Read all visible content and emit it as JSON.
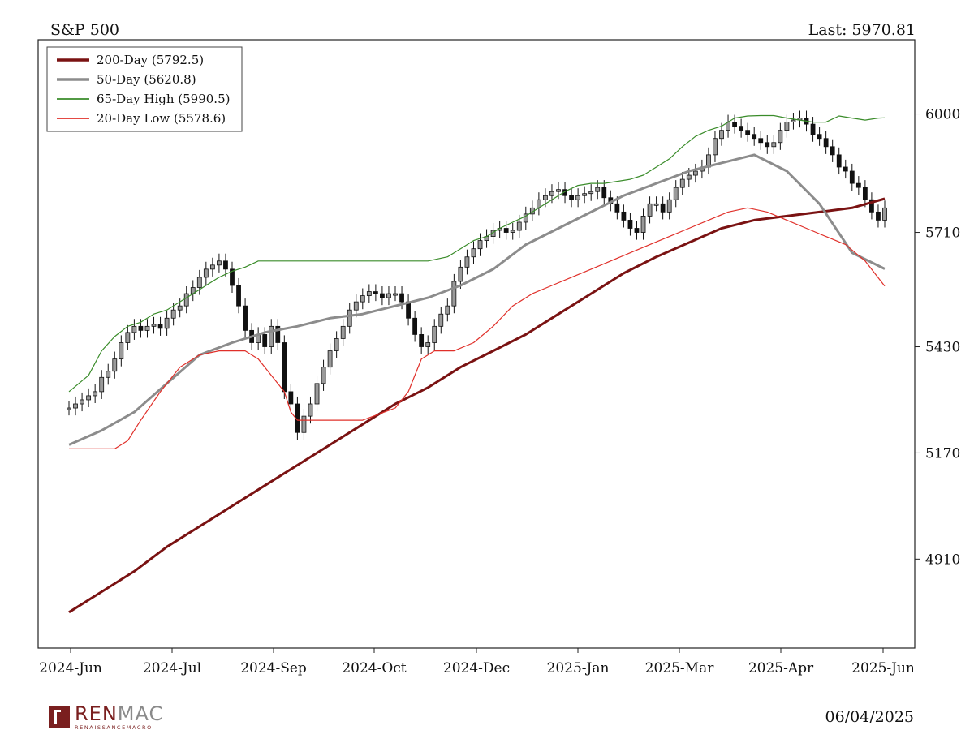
{
  "header": {
    "title": "S&P 500",
    "last": "Last: 5970.81"
  },
  "footer": {
    "date": "06/04/2025",
    "logo_name": "RENMAC",
    "logo_sub": "RENAISSANCEMACRO"
  },
  "chart_data": {
    "type": "line",
    "title": "S&P 500",
    "x_labels": [
      "2024-Jun",
      "2024-Jul",
      "2024-Sep",
      "2024-Oct",
      "2024-Dec",
      "2025-Jan",
      "2025-Mar",
      "2025-Apr",
      "2025-Jun"
    ],
    "y_ticks": [
      4910,
      5170,
      5430,
      5710,
      6000
    ],
    "ylim": [
      4720,
      6150
    ],
    "xlim": [
      0,
      250
    ],
    "legend_position": "top-left",
    "grid": false,
    "candles": {
      "name": "S&P 500 daily",
      "up_color": "#9a9a9a",
      "down_color": "#111111",
      "points": [
        [
          0,
          5280
        ],
        [
          2,
          5290
        ],
        [
          4,
          5300
        ],
        [
          6,
          5310
        ],
        [
          8,
          5320
        ],
        [
          10,
          5355
        ],
        [
          12,
          5370
        ],
        [
          14,
          5400
        ],
        [
          16,
          5440
        ],
        [
          18,
          5465
        ],
        [
          20,
          5480
        ],
        [
          22,
          5470
        ],
        [
          24,
          5480
        ],
        [
          26,
          5485
        ],
        [
          28,
          5475
        ],
        [
          30,
          5500
        ],
        [
          32,
          5520
        ],
        [
          34,
          5530
        ],
        [
          36,
          5560
        ],
        [
          38,
          5575
        ],
        [
          40,
          5600
        ],
        [
          42,
          5620
        ],
        [
          44,
          5630
        ],
        [
          46,
          5640
        ],
        [
          48,
          5620
        ],
        [
          50,
          5580
        ],
        [
          52,
          5530
        ],
        [
          54,
          5470
        ],
        [
          56,
          5440
        ],
        [
          58,
          5460
        ],
        [
          60,
          5430
        ],
        [
          62,
          5480
        ],
        [
          64,
          5440
        ],
        [
          66,
          5320
        ],
        [
          68,
          5290
        ],
        [
          70,
          5220
        ],
        [
          72,
          5260
        ],
        [
          74,
          5290
        ],
        [
          76,
          5340
        ],
        [
          78,
          5380
        ],
        [
          80,
          5420
        ],
        [
          82,
          5450
        ],
        [
          84,
          5480
        ],
        [
          86,
          5520
        ],
        [
          88,
          5540
        ],
        [
          90,
          5555
        ],
        [
          92,
          5565
        ],
        [
          94,
          5560
        ],
        [
          96,
          5550
        ],
        [
          98,
          5560
        ],
        [
          100,
          5560
        ],
        [
          102,
          5540
        ],
        [
          104,
          5500
        ],
        [
          106,
          5460
        ],
        [
          108,
          5430
        ],
        [
          110,
          5440
        ],
        [
          112,
          5480
        ],
        [
          114,
          5510
        ],
        [
          116,
          5530
        ],
        [
          118,
          5590
        ],
        [
          120,
          5625
        ],
        [
          122,
          5650
        ],
        [
          124,
          5670
        ],
        [
          126,
          5690
        ],
        [
          128,
          5700
        ],
        [
          130,
          5715
        ],
        [
          132,
          5720
        ],
        [
          134,
          5710
        ],
        [
          136,
          5715
        ],
        [
          138,
          5735
        ],
        [
          140,
          5755
        ],
        [
          142,
          5770
        ],
        [
          144,
          5790
        ],
        [
          146,
          5800
        ],
        [
          148,
          5810
        ],
        [
          150,
          5815
        ],
        [
          152,
          5800
        ],
        [
          154,
          5790
        ],
        [
          156,
          5800
        ],
        [
          158,
          5805
        ],
        [
          160,
          5810
        ],
        [
          162,
          5820
        ],
        [
          164,
          5795
        ],
        [
          166,
          5780
        ],
        [
          168,
          5760
        ],
        [
          170,
          5740
        ],
        [
          172,
          5720
        ],
        [
          174,
          5710
        ],
        [
          176,
          5750
        ],
        [
          178,
          5780
        ],
        [
          180,
          5780
        ],
        [
          182,
          5760
        ],
        [
          184,
          5790
        ],
        [
          186,
          5820
        ],
        [
          188,
          5840
        ],
        [
          190,
          5850
        ],
        [
          192,
          5860
        ],
        [
          194,
          5870
        ],
        [
          196,
          5900
        ],
        [
          198,
          5940
        ],
        [
          200,
          5960
        ],
        [
          202,
          5980
        ],
        [
          204,
          5970
        ],
        [
          206,
          5960
        ],
        [
          208,
          5950
        ],
        [
          210,
          5940
        ],
        [
          212,
          5930
        ],
        [
          214,
          5920
        ],
        [
          216,
          5930
        ],
        [
          218,
          5960
        ],
        [
          220,
          5980
        ],
        [
          222,
          5985
        ],
        [
          224,
          5990
        ],
        [
          226,
          5975
        ],
        [
          228,
          5950
        ],
        [
          230,
          5940
        ],
        [
          232,
          5920
        ],
        [
          234,
          5900
        ],
        [
          236,
          5870
        ],
        [
          238,
          5860
        ],
        [
          240,
          5830
        ],
        [
          242,
          5820
        ],
        [
          244,
          5790
        ],
        [
          246,
          5760
        ],
        [
          248,
          5740
        ],
        [
          250,
          5770
        ]
      ]
    },
    "series": [
      {
        "name": "200-Day",
        "legend": "200-Day (5792.5)",
        "color": "#7a1212",
        "width": 3,
        "points": [
          [
            0,
            4780
          ],
          [
            10,
            4830
          ],
          [
            20,
            4880
          ],
          [
            30,
            4940
          ],
          [
            40,
            4990
          ],
          [
            50,
            5040
          ],
          [
            60,
            5090
          ],
          [
            70,
            5140
          ],
          [
            80,
            5190
          ],
          [
            90,
            5240
          ],
          [
            100,
            5290
          ],
          [
            110,
            5330
          ],
          [
            120,
            5380
          ],
          [
            130,
            5420
          ],
          [
            140,
            5460
          ],
          [
            150,
            5510
          ],
          [
            160,
            5560
          ],
          [
            170,
            5610
          ],
          [
            180,
            5650
          ],
          [
            190,
            5685
          ],
          [
            200,
            5720
          ],
          [
            210,
            5740
          ],
          [
            220,
            5750
          ],
          [
            230,
            5760
          ],
          [
            240,
            5770
          ],
          [
            250,
            5792.5
          ]
        ]
      },
      {
        "name": "50-Day",
        "legend": "50-Day (5620.8)",
        "color": "#8c8c8c",
        "width": 3,
        "points": [
          [
            0,
            5190
          ],
          [
            10,
            5225
          ],
          [
            20,
            5270
          ],
          [
            30,
            5340
          ],
          [
            40,
            5410
          ],
          [
            50,
            5440
          ],
          [
            60,
            5465
          ],
          [
            70,
            5480
          ],
          [
            80,
            5500
          ],
          [
            90,
            5510
          ],
          [
            100,
            5530
          ],
          [
            110,
            5550
          ],
          [
            120,
            5580
          ],
          [
            130,
            5620
          ],
          [
            140,
            5680
          ],
          [
            150,
            5720
          ],
          [
            160,
            5760
          ],
          [
            170,
            5800
          ],
          [
            180,
            5830
          ],
          [
            190,
            5860
          ],
          [
            200,
            5880
          ],
          [
            210,
            5900
          ],
          [
            220,
            5860
          ],
          [
            230,
            5780
          ],
          [
            240,
            5660
          ],
          [
            250,
            5620.8
          ]
        ]
      },
      {
        "name": "65-Day High",
        "legend": "65-Day High (5990.5)",
        "color": "#3a8c2a",
        "width": 1.2,
        "points": [
          [
            0,
            5320
          ],
          [
            6,
            5360
          ],
          [
            10,
            5420
          ],
          [
            14,
            5455
          ],
          [
            18,
            5480
          ],
          [
            22,
            5490
          ],
          [
            26,
            5510
          ],
          [
            30,
            5520
          ],
          [
            34,
            5540
          ],
          [
            38,
            5560
          ],
          [
            42,
            5580
          ],
          [
            46,
            5600
          ],
          [
            50,
            5615
          ],
          [
            54,
            5625
          ],
          [
            58,
            5640
          ],
          [
            62,
            5640
          ],
          [
            70,
            5640
          ],
          [
            80,
            5640
          ],
          [
            90,
            5640
          ],
          [
            100,
            5640
          ],
          [
            110,
            5640
          ],
          [
            116,
            5650
          ],
          [
            120,
            5670
          ],
          [
            124,
            5690
          ],
          [
            128,
            5700
          ],
          [
            132,
            5720
          ],
          [
            136,
            5735
          ],
          [
            140,
            5750
          ],
          [
            144,
            5770
          ],
          [
            148,
            5790
          ],
          [
            152,
            5810
          ],
          [
            156,
            5825
          ],
          [
            160,
            5830
          ],
          [
            164,
            5830
          ],
          [
            168,
            5835
          ],
          [
            172,
            5840
          ],
          [
            176,
            5850
          ],
          [
            180,
            5870
          ],
          [
            184,
            5890
          ],
          [
            188,
            5920
          ],
          [
            192,
            5945
          ],
          [
            196,
            5960
          ],
          [
            200,
            5970
          ],
          [
            204,
            5990
          ],
          [
            208,
            5995
          ],
          [
            212,
            5996
          ],
          [
            216,
            5996
          ],
          [
            220,
            5990
          ],
          [
            224,
            5985
          ],
          [
            228,
            5980
          ],
          [
            232,
            5980
          ],
          [
            236,
            5995
          ],
          [
            240,
            5990
          ],
          [
            244,
            5985
          ],
          [
            248,
            5990
          ],
          [
            250,
            5990.5
          ]
        ]
      },
      {
        "name": "20-Day Low",
        "legend": "20-Day Low (5578.6)",
        "color": "#e0302a",
        "width": 1.2,
        "points": [
          [
            0,
            5180
          ],
          [
            8,
            5180
          ],
          [
            14,
            5180
          ],
          [
            18,
            5200
          ],
          [
            22,
            5250
          ],
          [
            28,
            5320
          ],
          [
            34,
            5380
          ],
          [
            40,
            5410
          ],
          [
            46,
            5420
          ],
          [
            50,
            5420
          ],
          [
            54,
            5420
          ],
          [
            58,
            5400
          ],
          [
            62,
            5360
          ],
          [
            66,
            5320
          ],
          [
            68,
            5270
          ],
          [
            70,
            5250
          ],
          [
            72,
            5250
          ],
          [
            80,
            5250
          ],
          [
            90,
            5250
          ],
          [
            100,
            5280
          ],
          [
            104,
            5320
          ],
          [
            108,
            5400
          ],
          [
            112,
            5420
          ],
          [
            118,
            5420
          ],
          [
            124,
            5440
          ],
          [
            130,
            5480
          ],
          [
            136,
            5530
          ],
          [
            142,
            5560
          ],
          [
            148,
            5580
          ],
          [
            154,
            5600
          ],
          [
            160,
            5620
          ],
          [
            166,
            5640
          ],
          [
            172,
            5660
          ],
          [
            178,
            5680
          ],
          [
            184,
            5700
          ],
          [
            190,
            5720
          ],
          [
            196,
            5740
          ],
          [
            202,
            5760
          ],
          [
            208,
            5770
          ],
          [
            214,
            5760
          ],
          [
            220,
            5740
          ],
          [
            226,
            5720
          ],
          [
            232,
            5700
          ],
          [
            238,
            5680
          ],
          [
            244,
            5640
          ],
          [
            250,
            5578.6
          ]
        ]
      }
    ]
  }
}
